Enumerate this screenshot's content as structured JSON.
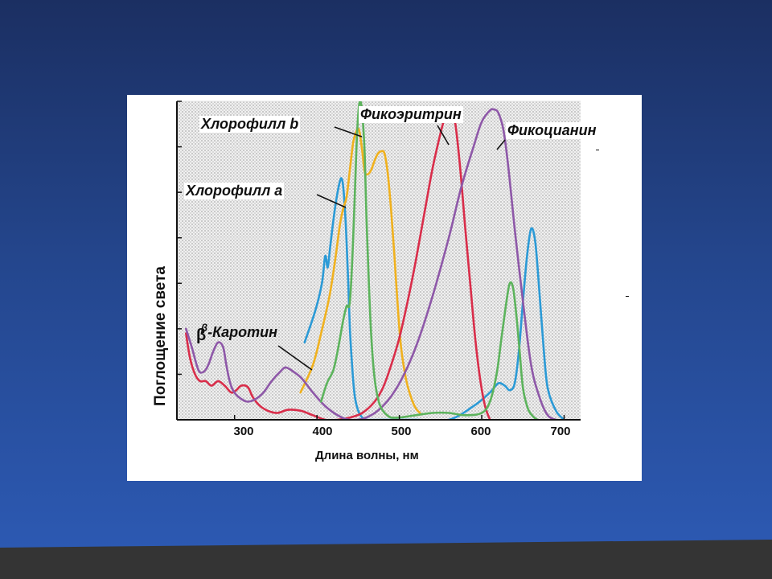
{
  "chart_data": {
    "type": "line",
    "xlabel": "Длина волны, нм",
    "ylabel": "Поглощение света",
    "xlim": [
      230,
      720
    ],
    "ylim": [
      0,
      7
    ],
    "xticks": [
      300,
      400,
      500,
      600,
      700
    ],
    "xtick_labels": [
      "300",
      "400",
      "500",
      "600",
      "700"
    ],
    "grid": true,
    "background": "dotted gray",
    "series": [
      {
        "name": "Хлорофилл a",
        "color": "#2b9ad6",
        "x": [
          385,
          398,
          406,
          410,
          413,
          416,
          420,
          424,
          428,
          430,
          432,
          434,
          436,
          438,
          440,
          443,
          446,
          450,
          455,
          460,
          480,
          520,
          560,
          590,
          610,
          620,
          628,
          634,
          640,
          645,
          650,
          655,
          660,
          665,
          670,
          675,
          680,
          690,
          700
        ],
        "values": [
          1.7,
          2.4,
          3.0,
          3.6,
          3.35,
          3.8,
          4.4,
          4.9,
          5.25,
          5.3,
          5.1,
          4.6,
          3.9,
          3.0,
          2.0,
          1.1,
          0.5,
          0.2,
          0.05,
          0.0,
          0.0,
          0.0,
          0.0,
          0.3,
          0.6,
          0.8,
          0.75,
          0.65,
          0.8,
          1.5,
          2.6,
          3.6,
          4.2,
          3.9,
          2.8,
          1.6,
          0.7,
          0.2,
          0.0
        ]
      },
      {
        "name": "Хлорофилл b",
        "color": "#f0b11e",
        "x": [
          380,
          395,
          405,
          415,
          422,
          428,
          432,
          436,
          440,
          444,
          448,
          450,
          452,
          455,
          458,
          462,
          466,
          470,
          474,
          478,
          482,
          486,
          490,
          494,
          498,
          502,
          508,
          514,
          520,
          525
        ],
        "values": [
          0.6,
          1.2,
          1.9,
          2.7,
          3.5,
          4.3,
          4.65,
          4.9,
          5.5,
          6.1,
          6.35,
          6.4,
          6.3,
          5.9,
          5.45,
          5.4,
          5.5,
          5.7,
          5.85,
          5.9,
          5.85,
          5.4,
          4.6,
          3.6,
          2.5,
          1.6,
          0.9,
          0.5,
          0.25,
          0.15
        ]
      },
      {
        "name": "Фикоэритрин",
        "color": "#d92d4a",
        "x": [
          241,
          246,
          252,
          258,
          265,
          272,
          280,
          288,
          296,
          302,
          308,
          316,
          322,
          330,
          340,
          352,
          365,
          380,
          395,
          410,
          425,
          440,
          455,
          470,
          480,
          490,
          500,
          510,
          520,
          530,
          540,
          550,
          556,
          560,
          564,
          568,
          574,
          580,
          586,
          592,
          598,
          604,
          610
        ],
        "values": [
          1.9,
          1.35,
          1.0,
          0.85,
          0.85,
          0.75,
          0.85,
          0.75,
          0.6,
          0.65,
          0.75,
          0.72,
          0.5,
          0.32,
          0.2,
          0.15,
          0.22,
          0.2,
          0.1,
          0.0,
          0.0,
          0.05,
          0.15,
          0.4,
          0.7,
          1.2,
          1.8,
          2.6,
          3.5,
          4.5,
          5.5,
          6.3,
          6.7,
          6.85,
          6.8,
          6.5,
          5.5,
          4.2,
          3.0,
          1.8,
          0.9,
          0.3,
          0.0
        ]
      },
      {
        "name": "Фикоцианин",
        "color": "#8e58a8",
        "x": [
          241,
          248,
          256,
          262,
          268,
          274,
          280,
          286,
          290,
          294,
          298,
          305,
          315,
          325,
          335,
          345,
          355,
          362,
          372,
          382,
          395,
          410,
          425,
          440,
          460,
          480,
          500,
          520,
          540,
          560,
          575,
          590,
          600,
          610,
          615,
          620,
          626,
          632,
          640,
          650,
          660,
          670,
          680,
          690
        ],
        "values": [
          2.0,
          1.6,
          1.1,
          1.05,
          1.2,
          1.5,
          1.7,
          1.6,
          1.2,
          0.85,
          0.65,
          0.5,
          0.4,
          0.45,
          0.6,
          0.85,
          1.05,
          1.15,
          1.05,
          0.9,
          0.6,
          0.3,
          0.1,
          0.0,
          0.05,
          0.3,
          0.8,
          1.6,
          2.7,
          4.0,
          5.1,
          6.0,
          6.55,
          6.8,
          6.82,
          6.75,
          6.4,
          5.6,
          4.2,
          2.6,
          1.2,
          0.5,
          0.1,
          0.0
        ]
      },
      {
        "name": "β-Каротин",
        "color": "#5cb35c",
        "x": [
          405,
          412,
          420,
          426,
          432,
          436,
          440,
          444,
          448,
          450,
          452,
          454,
          456,
          458,
          460,
          463,
          466,
          470,
          475,
          480,
          485,
          490,
          500,
          520,
          540,
          560,
          580,
          600,
          610,
          618,
          624,
          630,
          634,
          638,
          642,
          646,
          650,
          656,
          662,
          668,
          675
        ],
        "values": [
          0.4,
          0.8,
          1.1,
          1.6,
          2.2,
          2.5,
          2.6,
          4.0,
          6.0,
          6.7,
          7.0,
          6.9,
          6.5,
          5.8,
          4.5,
          3.0,
          1.8,
          0.9,
          0.4,
          0.2,
          0.1,
          0.05,
          0.05,
          0.1,
          0.15,
          0.15,
          0.1,
          0.15,
          0.4,
          1.0,
          1.8,
          2.6,
          3.0,
          2.9,
          2.3,
          1.5,
          0.7,
          0.25,
          0.08,
          0.0,
          0.0
        ]
      }
    ]
  },
  "annotations": {
    "chl_b": "Хлорофилл b",
    "phycoerythrin": "Фикоэритрин",
    "phycocyanin": "Фикоцианин",
    "chl_a": "Хлорофилл a",
    "carotene_prefix": "β",
    "carotene": "-Каротин",
    "carotene_big_beta": "β"
  },
  "colors": {
    "background_top": "#1b2f62",
    "background_bottom": "#2d5bb6",
    "footer_band": "#343434"
  }
}
